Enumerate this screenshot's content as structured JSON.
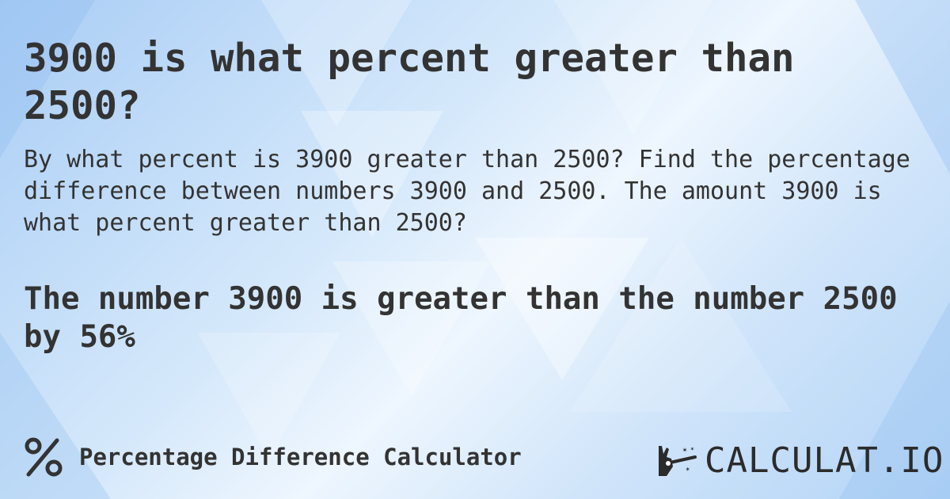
{
  "title": "3900 is what percent greater than 2500?",
  "description": "By what percent is 3900 greater than 2500? Find the percentage difference between numbers 3900 and 2500. The amount 3900 is what percent greater than 2500?",
  "result": "The number 3900 is greater than the number 2500 by 56%",
  "footer": {
    "icon": "percent-icon",
    "label": "Percentage Difference Calculator"
  },
  "logo": {
    "icon": "hand-wand-icon",
    "text": "CALCULAT.IO"
  },
  "colors": {
    "text": "#333333",
    "background": "#cfe4fa"
  }
}
